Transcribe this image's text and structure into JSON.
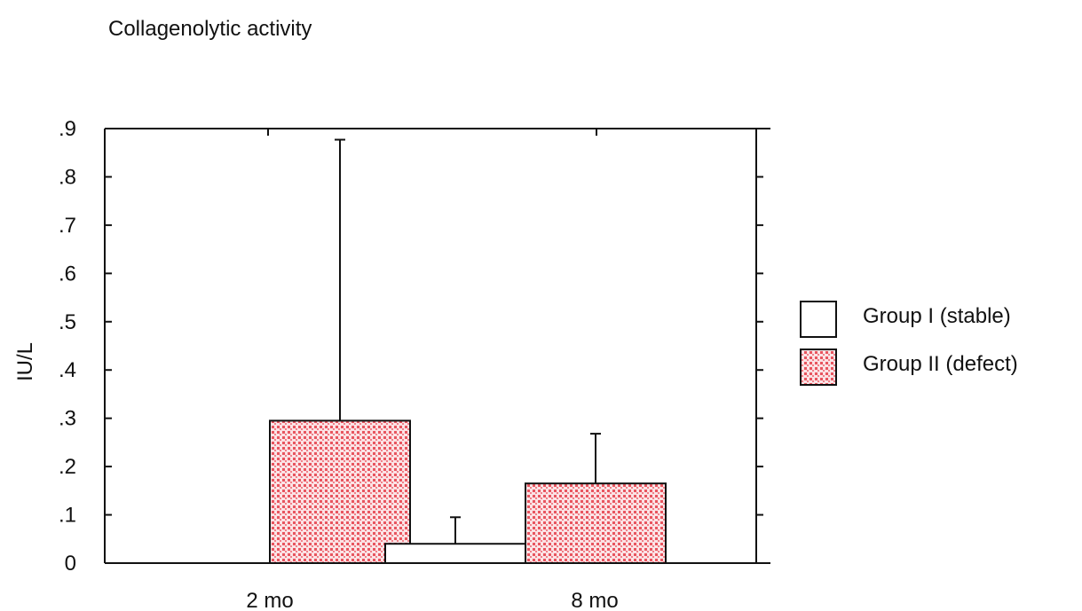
{
  "chart_data": {
    "type": "bar",
    "title": "Collagenolytic activity",
    "ylabel": "IU/L",
    "xlabel": "",
    "ylim": [
      0,
      0.9
    ],
    "yticks": [
      {
        "value": 0,
        "label": "0"
      },
      {
        "value": 0.1,
        "label": ".1"
      },
      {
        "value": 0.2,
        "label": ".2"
      },
      {
        "value": 0.3,
        "label": ".3"
      },
      {
        "value": 0.4,
        "label": ".4"
      },
      {
        "value": 0.5,
        "label": ".5"
      },
      {
        "value": 0.6,
        "label": ".6"
      },
      {
        "value": 0.7,
        "label": ".7"
      },
      {
        "value": 0.8,
        "label": ".8"
      },
      {
        "value": 0.9,
        "label": ".9"
      }
    ],
    "categories": [
      "2 mo",
      "8 mo"
    ],
    "series": [
      {
        "name": "Group I (stable)",
        "values": [
          0.0,
          0.04
        ],
        "error_upper": [
          0.0,
          0.095
        ],
        "fill": "#ffffff"
      },
      {
        "name": "Group II (defect)",
        "values": [
          0.295,
          0.165
        ],
        "error_upper": [
          0.877,
          0.268
        ],
        "fill": "#f3a6ad"
      }
    ],
    "legend_position": "right",
    "grid": false
  }
}
